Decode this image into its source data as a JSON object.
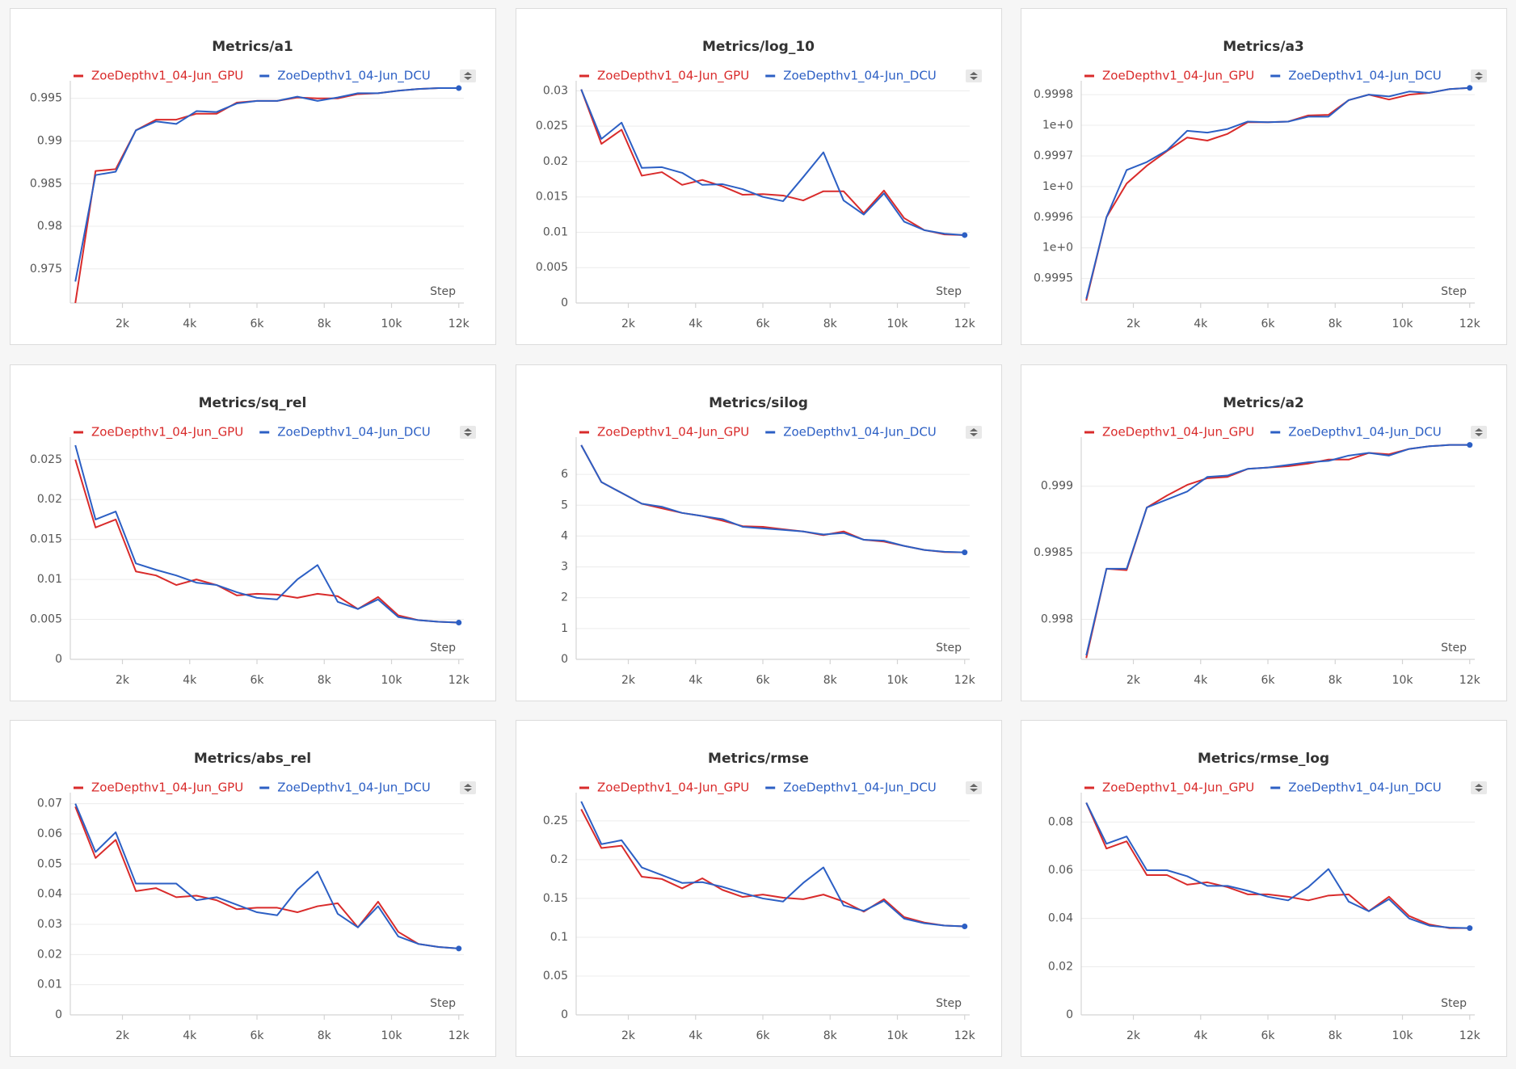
{
  "chart_data": [
    {
      "type": "line",
      "title": "Metrics/a1",
      "xlabel": "Step",
      "grid": true,
      "x": [
        600,
        1200,
        1800,
        2400,
        3000,
        3600,
        4200,
        4800,
        5400,
        6000,
        6600,
        7200,
        7800,
        8400,
        9000,
        9600,
        10200,
        10800,
        11400,
        12000
      ],
      "xlim": [
        450,
        12150
      ],
      "xticks": [
        {
          "value": 2000,
          "label": "2k"
        },
        {
          "value": 4000,
          "label": "4k"
        },
        {
          "value": 6000,
          "label": "6k"
        },
        {
          "value": 8000,
          "label": "8k"
        },
        {
          "value": 10000,
          "label": "10k"
        },
        {
          "value": 12000,
          "label": "12k"
        }
      ],
      "ylim": [
        0.971,
        0.9963
      ],
      "yticks": [
        0.975,
        0.98,
        0.985,
        0.99,
        0.995
      ],
      "series": [
        {
          "name": "ZoeDepthv1_04-Jun_GPU",
          "color": "#d92b2b",
          "values": [
            0.971,
            0.98648,
            0.9867,
            0.99125,
            0.9925,
            0.9925,
            0.9932,
            0.9932,
            0.9945,
            0.9947,
            0.9947,
            0.9951,
            0.995,
            0.995,
            0.9955,
            0.9956,
            0.9959,
            0.9961,
            0.9962,
            0.9962
          ]
        },
        {
          "name": "ZoeDepthv1_04-Jun_DCU",
          "color": "#2c5fc4",
          "values": [
            0.97352,
            0.986,
            0.9864,
            0.99125,
            0.9923,
            0.992,
            0.9935,
            0.9934,
            0.9944,
            0.9947,
            0.9947,
            0.9952,
            0.9947,
            0.9951,
            0.9956,
            0.9956,
            0.9959,
            0.9961,
            0.9962,
            0.9962
          ]
        }
      ]
    },
    {
      "type": "line",
      "title": "Metrics/log_10",
      "xlabel": "Step",
      "grid": true,
      "x": [
        600,
        1200,
        1800,
        2400,
        3000,
        3600,
        4200,
        4800,
        5400,
        6000,
        6600,
        7200,
        7800,
        8400,
        9000,
        9600,
        10200,
        10800,
        11400,
        12000
      ],
      "xlim": [
        450,
        12150
      ],
      "xticks": [
        {
          "value": 2000,
          "label": "2k"
        },
        {
          "value": 4000,
          "label": "4k"
        },
        {
          "value": 6000,
          "label": "6k"
        },
        {
          "value": 8000,
          "label": "8k"
        },
        {
          "value": 10000,
          "label": "10k"
        },
        {
          "value": 12000,
          "label": "12k"
        }
      ],
      "ylim": [
        0,
        0.0305
      ],
      "yticks": [
        0,
        0.005,
        0.01,
        0.015,
        0.02,
        0.025,
        0.03
      ],
      "series": [
        {
          "name": "ZoeDepthv1_04-Jun_GPU",
          "color": "#d92b2b",
          "values": [
            0.0302,
            0.0225,
            0.0245,
            0.018,
            0.0185,
            0.0167,
            0.0174,
            0.0165,
            0.0153,
            0.0154,
            0.0152,
            0.0145,
            0.0158,
            0.0158,
            0.0127,
            0.0159,
            0.012,
            0.0103,
            0.0097,
            0.0096
          ]
        },
        {
          "name": "ZoeDepthv1_04-Jun_DCU",
          "color": "#2c5fc4",
          "values": [
            0.0302,
            0.0232,
            0.0255,
            0.0191,
            0.0192,
            0.0184,
            0.0167,
            0.0168,
            0.0161,
            0.015,
            0.0144,
            0.0178,
            0.0213,
            0.0145,
            0.0125,
            0.0155,
            0.0115,
            0.0103,
            0.0098,
            0.0096
          ]
        }
      ]
    },
    {
      "type": "line",
      "title": "Metrics/a3",
      "xlabel": "Step",
      "grid": true,
      "x": [
        600,
        1200,
        1800,
        2400,
        3000,
        3600,
        4200,
        4800,
        5400,
        6000,
        6600,
        7200,
        7800,
        8400,
        9000,
        9600,
        10200,
        10800,
        11400,
        12000
      ],
      "xlim": [
        450,
        12150
      ],
      "xticks": [
        {
          "value": 2000,
          "label": "2k"
        },
        {
          "value": 4000,
          "label": "4k"
        },
        {
          "value": 6000,
          "label": "6k"
        },
        {
          "value": 8000,
          "label": "8k"
        },
        {
          "value": 10000,
          "label": "10k"
        },
        {
          "value": 12000,
          "label": "12k"
        }
      ],
      "ylim": [
        0.99946,
        0.999812
      ],
      "yticks": [
        0.9995,
        {
          "value": 0.99955,
          "label": "1e+0"
        },
        0.9996,
        {
          "value": 0.99965,
          "label": "1e+0"
        },
        0.9997,
        {
          "value": 0.99975,
          "label": "1e+0"
        },
        0.9998
      ],
      "series": [
        {
          "name": "ZoeDepthv1_04-Jun_GPU",
          "color": "#d92b2b",
          "values": [
            0.999464,
            0.9996,
            0.999655,
            0.999684,
            0.999708,
            0.99973,
            0.999725,
            0.999736,
            0.999755,
            0.999755,
            0.999756,
            0.999766,
            0.999767,
            0.999791,
            0.9998,
            0.999792,
            0.9998,
            0.999803,
            0.999809,
            0.999811
          ]
        },
        {
          "name": "ZoeDepthv1_04-Jun_DCU",
          "color": "#2c5fc4",
          "values": [
            0.999467,
            0.9996,
            0.999677,
            0.99969,
            0.999709,
            0.999741,
            0.999738,
            0.999744,
            0.999756,
            0.999755,
            0.999756,
            0.999764,
            0.999764,
            0.999791,
            0.9998,
            0.999797,
            0.999805,
            0.999803,
            0.999809,
            0.999811
          ]
        }
      ]
    },
    {
      "type": "line",
      "title": "Metrics/sq_rel",
      "xlabel": "Step",
      "grid": true,
      "x": [
        600,
        1200,
        1800,
        2400,
        3000,
        3600,
        4200,
        4800,
        5400,
        6000,
        6600,
        7200,
        7800,
        8400,
        9000,
        9600,
        10200,
        10800,
        11400,
        12000
      ],
      "xlim": [
        450,
        12150
      ],
      "xticks": [
        {
          "value": 2000,
          "label": "2k"
        },
        {
          "value": 4000,
          "label": "4k"
        },
        {
          "value": 6000,
          "label": "6k"
        },
        {
          "value": 8000,
          "label": "8k"
        },
        {
          "value": 10000,
          "label": "10k"
        },
        {
          "value": 12000,
          "label": "12k"
        }
      ],
      "ylim": [
        0,
        0.027
      ],
      "yticks": [
        0,
        0.005,
        0.01,
        0.015,
        0.02,
        0.025
      ],
      "series": [
        {
          "name": "ZoeDepthv1_04-Jun_GPU",
          "color": "#d92b2b",
          "values": [
            0.025,
            0.0165,
            0.0175,
            0.011,
            0.0105,
            0.0093,
            0.01,
            0.0093,
            0.008,
            0.0082,
            0.0081,
            0.0077,
            0.0082,
            0.0079,
            0.0063,
            0.0078,
            0.0055,
            0.0049,
            0.0047,
            0.0046
          ]
        },
        {
          "name": "ZoeDepthv1_04-Jun_DCU",
          "color": "#2c5fc4",
          "values": [
            0.0268,
            0.0175,
            0.0185,
            0.012,
            0.0112,
            0.0105,
            0.0096,
            0.0093,
            0.0084,
            0.0077,
            0.0075,
            0.01,
            0.0118,
            0.0072,
            0.0063,
            0.0075,
            0.0053,
            0.0049,
            0.0047,
            0.0046
          ]
        }
      ]
    },
    {
      "type": "line",
      "title": "Metrics/silog",
      "xlabel": "Step",
      "grid": true,
      "x": [
        600,
        1200,
        1800,
        2400,
        3000,
        3600,
        4200,
        4800,
        5400,
        6000,
        6600,
        7200,
        7800,
        8400,
        9000,
        9600,
        10200,
        10800,
        11400,
        12000
      ],
      "xlim": [
        450,
        12150
      ],
      "xticks": [
        {
          "value": 2000,
          "label": "2k"
        },
        {
          "value": 4000,
          "label": "4k"
        },
        {
          "value": 6000,
          "label": "6k"
        },
        {
          "value": 8000,
          "label": "8k"
        },
        {
          "value": 10000,
          "label": "10k"
        },
        {
          "value": 12000,
          "label": "12k"
        }
      ],
      "ylim": [
        0,
        7
      ],
      "yticks": [
        0,
        1,
        2,
        3,
        4,
        5,
        6
      ],
      "series": [
        {
          "name": "ZoeDepthv1_04-Jun_GPU",
          "color": "#d92b2b",
          "values": [
            6.95,
            5.75,
            5.4,
            5.05,
            4.9,
            4.75,
            4.65,
            4.5,
            4.32,
            4.3,
            4.22,
            4.15,
            4.03,
            4.15,
            3.88,
            3.82,
            3.68,
            3.55,
            3.48,
            3.47
          ]
        },
        {
          "name": "ZoeDepthv1_04-Jun_DCU",
          "color": "#2c5fc4",
          "values": [
            6.95,
            5.75,
            5.4,
            5.05,
            4.95,
            4.75,
            4.65,
            4.55,
            4.3,
            4.25,
            4.2,
            4.15,
            4.05,
            4.1,
            3.88,
            3.85,
            3.68,
            3.55,
            3.49,
            3.47
          ]
        }
      ]
    },
    {
      "type": "line",
      "title": "Metrics/a2",
      "xlabel": "Step",
      "grid": true,
      "x": [
        600,
        1200,
        1800,
        2400,
        3000,
        3600,
        4200,
        4800,
        5400,
        6000,
        6600,
        7200,
        7800,
        8400,
        9000,
        9600,
        10200,
        10800,
        11400,
        12000
      ],
      "xlim": [
        450,
        12150
      ],
      "xticks": [
        {
          "value": 2000,
          "label": "2k"
        },
        {
          "value": 4000,
          "label": "4k"
        },
        {
          "value": 6000,
          "label": "6k"
        },
        {
          "value": 8000,
          "label": "8k"
        },
        {
          "value": 10000,
          "label": "10k"
        },
        {
          "value": 12000,
          "label": "12k"
        }
      ],
      "ylim": [
        0.9977,
        0.99932
      ],
      "yticks": [
        0.998,
        0.9985,
        0.999
      ],
      "series": [
        {
          "name": "ZoeDepthv1_04-Jun_GPU",
          "color": "#d92b2b",
          "values": [
            0.99771,
            0.99838,
            0.99837,
            0.99884,
            0.99893,
            0.99901,
            0.99906,
            0.99907,
            0.99913,
            0.99914,
            0.99915,
            0.99917,
            0.9992,
            0.9992,
            0.99925,
            0.99924,
            0.99928,
            0.9993,
            0.99931,
            0.99931
          ]
        },
        {
          "name": "ZoeDepthv1_04-Jun_DCU",
          "color": "#2c5fc4",
          "values": [
            0.99773,
            0.99838,
            0.99838,
            0.99884,
            0.9989,
            0.99896,
            0.99907,
            0.99908,
            0.99913,
            0.99914,
            0.99916,
            0.99918,
            0.99919,
            0.99923,
            0.99925,
            0.99923,
            0.99928,
            0.9993,
            0.99931,
            0.99931
          ]
        }
      ]
    },
    {
      "type": "line",
      "title": "Metrics/abs_rel",
      "xlabel": "Step",
      "grid": true,
      "x": [
        600,
        1200,
        1800,
        2400,
        3000,
        3600,
        4200,
        4800,
        5400,
        6000,
        6600,
        7200,
        7800,
        8400,
        9000,
        9600,
        10200,
        10800,
        11400,
        12000
      ],
      "xlim": [
        450,
        12150
      ],
      "xticks": [
        {
          "value": 2000,
          "label": "2k"
        },
        {
          "value": 4000,
          "label": "4k"
        },
        {
          "value": 6000,
          "label": "6k"
        },
        {
          "value": 8000,
          "label": "8k"
        },
        {
          "value": 10000,
          "label": "10k"
        },
        {
          "value": 12000,
          "label": "12k"
        }
      ],
      "ylim": [
        0,
        0.0715
      ],
      "yticks": [
        0,
        0.01,
        0.02,
        0.03,
        0.04,
        0.05,
        0.06,
        0.07
      ],
      "series": [
        {
          "name": "ZoeDepthv1_04-Jun_GPU",
          "color": "#d92b2b",
          "values": [
            0.069,
            0.052,
            0.058,
            0.041,
            0.042,
            0.039,
            0.0395,
            0.038,
            0.035,
            0.0355,
            0.0355,
            0.034,
            0.036,
            0.037,
            0.029,
            0.0375,
            0.0275,
            0.0235,
            0.0225,
            0.022
          ]
        },
        {
          "name": "ZoeDepthv1_04-Jun_DCU",
          "color": "#2c5fc4",
          "values": [
            0.07,
            0.054,
            0.0605,
            0.0435,
            0.0435,
            0.0435,
            0.038,
            0.039,
            0.0365,
            0.034,
            0.033,
            0.0415,
            0.0475,
            0.0335,
            0.029,
            0.036,
            0.026,
            0.0235,
            0.0225,
            0.022
          ]
        }
      ]
    },
    {
      "type": "line",
      "title": "Metrics/rmse",
      "xlabel": "Step",
      "grid": true,
      "x": [
        600,
        1200,
        1800,
        2400,
        3000,
        3600,
        4200,
        4800,
        5400,
        6000,
        6600,
        7200,
        7800,
        8400,
        9000,
        9600,
        10200,
        10800,
        11400,
        12000
      ],
      "xlim": [
        450,
        12150
      ],
      "xticks": [
        {
          "value": 2000,
          "label": "2k"
        },
        {
          "value": 4000,
          "label": "4k"
        },
        {
          "value": 6000,
          "label": "6k"
        },
        {
          "value": 8000,
          "label": "8k"
        },
        {
          "value": 10000,
          "label": "10k"
        },
        {
          "value": 12000,
          "label": "12k"
        }
      ],
      "ylim": [
        0,
        0.278
      ],
      "yticks": [
        0,
        0.05,
        0.1,
        0.15,
        0.2,
        0.25
      ],
      "series": [
        {
          "name": "ZoeDepthv1_04-Jun_GPU",
          "color": "#d92b2b",
          "values": [
            0.265,
            0.215,
            0.218,
            0.178,
            0.175,
            0.163,
            0.176,
            0.161,
            0.152,
            0.155,
            0.151,
            0.149,
            0.155,
            0.146,
            0.133,
            0.149,
            0.126,
            0.119,
            0.115,
            0.114
          ]
        },
        {
          "name": "ZoeDepthv1_04-Jun_DCU",
          "color": "#2c5fc4",
          "values": [
            0.275,
            0.22,
            0.225,
            0.19,
            0.18,
            0.17,
            0.171,
            0.165,
            0.157,
            0.15,
            0.146,
            0.17,
            0.19,
            0.141,
            0.134,
            0.147,
            0.124,
            0.118,
            0.115,
            0.114
          ]
        }
      ]
    },
    {
      "type": "line",
      "title": "Metrics/rmse_log",
      "xlabel": "Step",
      "grid": true,
      "x": [
        600,
        1200,
        1800,
        2400,
        3000,
        3600,
        4200,
        4800,
        5400,
        6000,
        6600,
        7200,
        7800,
        8400,
        9000,
        9600,
        10200,
        10800,
        11400,
        12000
      ],
      "xlim": [
        450,
        12150
      ],
      "xticks": [
        {
          "value": 2000,
          "label": "2k"
        },
        {
          "value": 4000,
          "label": "4k"
        },
        {
          "value": 6000,
          "label": "6k"
        },
        {
          "value": 8000,
          "label": "8k"
        },
        {
          "value": 10000,
          "label": "10k"
        },
        {
          "value": 12000,
          "label": "12k"
        }
      ],
      "ylim": [
        0,
        0.0895
      ],
      "yticks": [
        0,
        0.02,
        0.04,
        0.06,
        0.08
      ],
      "series": [
        {
          "name": "ZoeDepthv1_04-Jun_GPU",
          "color": "#d92b2b",
          "values": [
            0.088,
            0.069,
            0.072,
            0.058,
            0.058,
            0.054,
            0.055,
            0.053,
            0.05,
            0.05,
            0.049,
            0.0475,
            0.0495,
            0.05,
            0.043,
            0.049,
            0.041,
            0.0375,
            0.036,
            0.036
          ]
        },
        {
          "name": "ZoeDepthv1_04-Jun_DCU",
          "color": "#2c5fc4",
          "values": [
            0.088,
            0.071,
            0.074,
            0.06,
            0.06,
            0.0575,
            0.0535,
            0.0535,
            0.0515,
            0.049,
            0.0475,
            0.053,
            0.0605,
            0.047,
            0.043,
            0.048,
            0.04,
            0.037,
            0.0362,
            0.036
          ]
        }
      ]
    }
  ]
}
